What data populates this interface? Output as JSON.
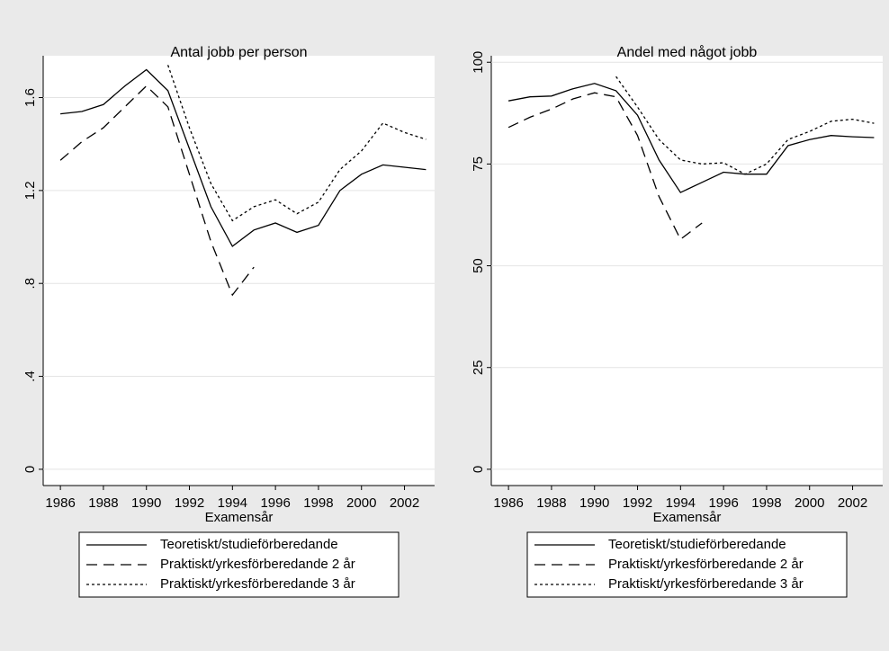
{
  "chart_data": [
    {
      "type": "line",
      "title": "Antal jobb per person",
      "x_label": "Examensår",
      "x": [
        1986,
        1987,
        1988,
        1989,
        1990,
        1991,
        1992,
        1993,
        1994,
        1995,
        1996,
        1997,
        1998,
        1999,
        2000,
        2001,
        2002,
        2003
      ],
      "xlim": [
        1985.2,
        2003.4
      ],
      "xticks": [
        1986,
        1988,
        1990,
        1992,
        1994,
        1996,
        1998,
        2000,
        2002
      ],
      "ylim": [
        -0.07,
        1.78
      ],
      "yticks": [
        0,
        {
          "value": 0.4,
          "label": ".4"
        },
        {
          "value": 0.8,
          "label": ".8"
        },
        1.2,
        1.6
      ],
      "grid": true,
      "legend": "bottom",
      "series": [
        {
          "name": "Teoretiskt/studieförberedande",
          "color": "#000000",
          "dash": "solid",
          "values": [
            1.53,
            1.54,
            1.57,
            1.65,
            1.72,
            1.63,
            1.38,
            1.13,
            0.96,
            1.03,
            1.06,
            1.02,
            1.05,
            1.2,
            1.27,
            1.31,
            1.3,
            1.29
          ]
        },
        {
          "name": "Praktiskt/yrkesförberedande 2 år",
          "color": "#000000",
          "dash": "dashed",
          "values": [
            1.33,
            1.41,
            1.47,
            1.56,
            1.65,
            1.56,
            1.27,
            0.98,
            0.75,
            0.87,
            null,
            null,
            null,
            null,
            null,
            null,
            null,
            null
          ]
        },
        {
          "name": "Praktiskt/yrkesförberedande 3 år",
          "color": "#000000",
          "dash": "dotted",
          "values": [
            null,
            null,
            null,
            null,
            null,
            1.74,
            1.47,
            1.23,
            1.07,
            1.13,
            1.16,
            1.1,
            1.15,
            1.29,
            1.37,
            1.49,
            1.45,
            1.42
          ]
        }
      ]
    },
    {
      "type": "line",
      "title": "Andel med något jobb",
      "x_label": "Examensår",
      "x": [
        1986,
        1987,
        1988,
        1989,
        1990,
        1991,
        1992,
        1993,
        1994,
        1995,
        1996,
        1997,
        1998,
        1999,
        2000,
        2001,
        2002,
        2003
      ],
      "xlim": [
        1985.2,
        2003.4
      ],
      "xticks": [
        1986,
        1988,
        1990,
        1992,
        1994,
        1996,
        1998,
        2000,
        2002
      ],
      "ylim": [
        -4,
        101.6
      ],
      "yticks": [
        0,
        25,
        50,
        75,
        100
      ],
      "grid": true,
      "legend": "bottom",
      "series": [
        {
          "name": "Teoretiskt/studieförberedande",
          "color": "#000000",
          "dash": "solid",
          "values": [
            90.5,
            91.5,
            91.7,
            93.5,
            94.8,
            93,
            87,
            76,
            68,
            70.5,
            73,
            72.5,
            72.5,
            79.5,
            81,
            82,
            81.7,
            81.5
          ]
        },
        {
          "name": "Praktiskt/yrkesförberedande 2 år",
          "color": "#000000",
          "dash": "dashed",
          "values": [
            84,
            86.5,
            88.5,
            91,
            92.5,
            91.5,
            82,
            67,
            56.5,
            60.5,
            null,
            null,
            null,
            null,
            null,
            null,
            null,
            null
          ]
        },
        {
          "name": "Praktiskt/yrkesförberedande 3 år",
          "color": "#000000",
          "dash": "dotted",
          "values": [
            null,
            null,
            null,
            null,
            null,
            96.5,
            89,
            81,
            76,
            75,
            75.3,
            72.5,
            75,
            81,
            83,
            85.5,
            86,
            85
          ]
        }
      ]
    }
  ]
}
